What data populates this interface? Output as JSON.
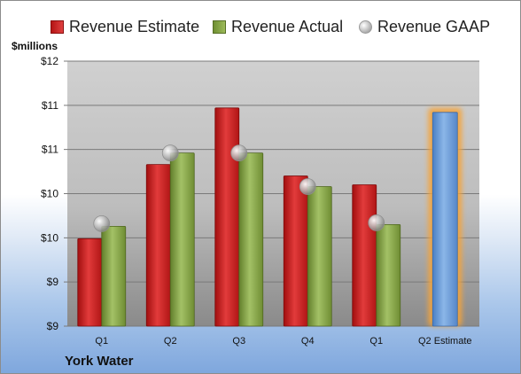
{
  "legend": {
    "estimate": "Revenue Estimate",
    "actual": "Revenue Actual",
    "gaap": "Revenue GAAP"
  },
  "unit_label": "$millions",
  "company": "York Water",
  "colors": {
    "estimate": "#c41e1e",
    "actual": "#8aa84a",
    "gaap": "#bdbdbd",
    "future_estimate": "#6a9ad6",
    "future_glow": "#f5a43a",
    "plot_bg": "#c8c8c8"
  },
  "chart_data": {
    "type": "bar",
    "categories": [
      "Q1",
      "Q2",
      "Q3",
      "Q4",
      "Q1",
      "Q2 Estimate"
    ],
    "y_tick_labels": [
      "$9",
      "$9",
      "$10",
      "$10",
      "$11",
      "$11",
      "$12"
    ],
    "ylim": [
      9.0,
      12.0
    ],
    "ylabel": "$millions",
    "series": [
      {
        "name": "Revenue Estimate",
        "values": [
          9.99,
          10.83,
          11.47,
          10.7,
          10.6,
          null
        ]
      },
      {
        "name": "Revenue Actual",
        "values": [
          10.13,
          10.96,
          10.96,
          10.58,
          10.15,
          null
        ]
      },
      {
        "name": "Revenue GAAP",
        "type": "marker",
        "values": [
          10.16,
          10.96,
          10.96,
          10.58,
          10.17,
          null
        ]
      },
      {
        "name": "Revenue Estimate (future)",
        "values": [
          null,
          null,
          null,
          null,
          null,
          11.42
        ]
      }
    ],
    "grid": true,
    "legend_position": "top"
  }
}
